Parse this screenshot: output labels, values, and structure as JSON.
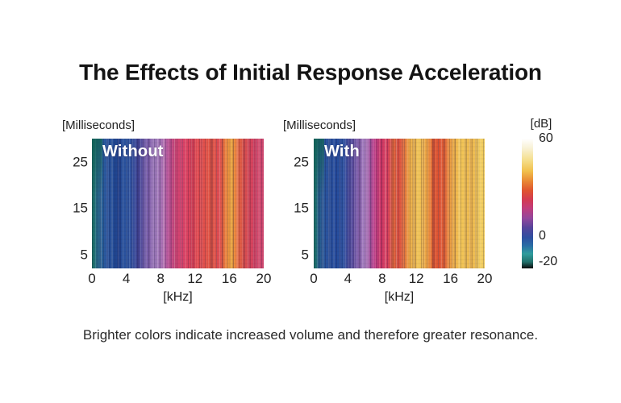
{
  "title": "The Effects of Initial Response Acceleration",
  "caption": "Brighter colors indicate increased volume and therefore greater resonance.",
  "chart_data": [
    {
      "type": "heatmap",
      "label": "Without",
      "xlabel": "[kHz]",
      "ylabel": "[Milliseconds]",
      "x_ticks": [
        0,
        4,
        8,
        12,
        16,
        20
      ],
      "y_ticks": [
        25,
        15,
        5
      ],
      "x_range": [
        0,
        20
      ],
      "y_range": [
        2,
        30
      ],
      "description": "Spectrogram without initial response acceleration: low frequencies blue (quiet), mids purple to magenta, highs mostly red with one bright yellow-orange resonance streak near 16 kHz.",
      "bands": [
        {
          "from_khz": 0.0,
          "to_khz": 0.3,
          "color": "#1c6e66",
          "approx_db": -12
        },
        {
          "from_khz": 0.3,
          "to_khz": 0.8,
          "color": "#27708c",
          "approx_db": -8
        },
        {
          "from_khz": 0.8,
          "to_khz": 2.4,
          "color": "#2b57a0",
          "approx_db": -2
        },
        {
          "from_khz": 2.4,
          "to_khz": 3.6,
          "color": "#1f4491",
          "approx_db": -4
        },
        {
          "from_khz": 3.6,
          "to_khz": 4.8,
          "color": "#2d57a3",
          "approx_db": -1
        },
        {
          "from_khz": 4.8,
          "to_khz": 5.8,
          "color": "#3f4899",
          "approx_db": 2
        },
        {
          "from_khz": 5.8,
          "to_khz": 6.5,
          "color": "#6b55a4",
          "approx_db": 6
        },
        {
          "from_khz": 6.5,
          "to_khz": 7.2,
          "color": "#8d6ab2",
          "approx_db": 9
        },
        {
          "from_khz": 7.2,
          "to_khz": 7.9,
          "color": "#a783c2",
          "approx_db": 12
        },
        {
          "from_khz": 7.9,
          "to_khz": 8.5,
          "color": "#a96fb3",
          "approx_db": 13
        },
        {
          "from_khz": 8.5,
          "to_khz": 9.3,
          "color": "#bb5598",
          "approx_db": 15
        },
        {
          "from_khz": 9.3,
          "to_khz": 10.0,
          "color": "#cc4778",
          "approx_db": 18
        },
        {
          "from_khz": 10.0,
          "to_khz": 10.9,
          "color": "#d8406a",
          "approx_db": 20
        },
        {
          "from_khz": 10.9,
          "to_khz": 12.4,
          "color": "#dd4458",
          "approx_db": 23
        },
        {
          "from_khz": 12.4,
          "to_khz": 13.5,
          "color": "#e14e4b",
          "approx_db": 26
        },
        {
          "from_khz": 13.5,
          "to_khz": 14.4,
          "color": "#e05844",
          "approx_db": 28
        },
        {
          "from_khz": 14.4,
          "to_khz": 15.2,
          "color": "#dd4751",
          "approx_db": 24
        },
        {
          "from_khz": 15.2,
          "to_khz": 15.8,
          "color": "#e87a3c",
          "approx_db": 33
        },
        {
          "from_khz": 15.8,
          "to_khz": 16.7,
          "color": "#f2ae41",
          "approx_db": 41
        },
        {
          "from_khz": 16.7,
          "to_khz": 17.3,
          "color": "#e4663f",
          "approx_db": 30
        },
        {
          "from_khz": 17.3,
          "to_khz": 18.2,
          "color": "#d94f4e",
          "approx_db": 25
        },
        {
          "from_khz": 18.2,
          "to_khz": 19.2,
          "color": "#d6425f",
          "approx_db": 22
        },
        {
          "from_khz": 19.2,
          "to_khz": 20.0,
          "color": "#d0486f",
          "approx_db": 20
        }
      ]
    },
    {
      "type": "heatmap",
      "label": "With",
      "xlabel": "[kHz]",
      "ylabel": "[Milliseconds]",
      "x_ticks": [
        0,
        4,
        8,
        12,
        16,
        20
      ],
      "y_ticks": [
        25,
        15,
        5
      ],
      "x_range": [
        0,
        20
      ],
      "y_range": [
        2,
        30
      ],
      "description": "Spectrogram with initial response acceleration: low frequencies blue, mids magenta to red, upper mids and highs much brighter with broad yellow bands around 11-13 kHz and 16-20 kHz indicating greater resonance.",
      "bands": [
        {
          "from_khz": 0.0,
          "to_khz": 0.3,
          "color": "#1c6e66",
          "approx_db": -12
        },
        {
          "from_khz": 0.3,
          "to_khz": 0.8,
          "color": "#27638f",
          "approx_db": -6
        },
        {
          "from_khz": 0.8,
          "to_khz": 2.0,
          "color": "#2b549e",
          "approx_db": -2
        },
        {
          "from_khz": 2.0,
          "to_khz": 3.0,
          "color": "#24499a",
          "approx_db": -4
        },
        {
          "from_khz": 3.0,
          "to_khz": 3.7,
          "color": "#2d57a6",
          "approx_db": 0
        },
        {
          "from_khz": 3.7,
          "to_khz": 4.3,
          "color": "#41479a",
          "approx_db": 3
        },
        {
          "from_khz": 4.3,
          "to_khz": 4.9,
          "color": "#5e4fa0",
          "approx_db": 6
        },
        {
          "from_khz": 4.9,
          "to_khz": 5.6,
          "color": "#8a65b0",
          "approx_db": 10
        },
        {
          "from_khz": 5.6,
          "to_khz": 6.2,
          "color": "#a77fc2",
          "approx_db": 13
        },
        {
          "from_khz": 6.2,
          "to_khz": 6.8,
          "color": "#a55ea7",
          "approx_db": 14
        },
        {
          "from_khz": 6.8,
          "to_khz": 7.5,
          "color": "#c2418a",
          "approx_db": 17
        },
        {
          "from_khz": 7.5,
          "to_khz": 8.3,
          "color": "#d23a66",
          "approx_db": 20
        },
        {
          "from_khz": 8.3,
          "to_khz": 9.0,
          "color": "#d63e5e",
          "approx_db": 22
        },
        {
          "from_khz": 9.0,
          "to_khz": 9.6,
          "color": "#e06a3c",
          "approx_db": 30
        },
        {
          "from_khz": 9.6,
          "to_khz": 10.3,
          "color": "#df4f43",
          "approx_db": 26
        },
        {
          "from_khz": 10.3,
          "to_khz": 11.0,
          "color": "#e4763a",
          "approx_db": 32
        },
        {
          "from_khz": 11.0,
          "to_khz": 11.6,
          "color": "#edb04a",
          "approx_db": 40
        },
        {
          "from_khz": 11.6,
          "to_khz": 13.0,
          "color": "#f0c455",
          "approx_db": 45
        },
        {
          "from_khz": 13.0,
          "to_khz": 13.6,
          "color": "#eda043",
          "approx_db": 38
        },
        {
          "from_khz": 13.6,
          "to_khz": 14.4,
          "color": "#e05b33",
          "approx_db": 30
        },
        {
          "from_khz": 14.4,
          "to_khz": 15.0,
          "color": "#dc4f31",
          "approx_db": 29
        },
        {
          "from_khz": 15.0,
          "to_khz": 15.8,
          "color": "#e2683a",
          "approx_db": 33
        },
        {
          "from_khz": 15.8,
          "to_khz": 16.4,
          "color": "#eea845",
          "approx_db": 40
        },
        {
          "from_khz": 16.4,
          "to_khz": 18.0,
          "color": "#f2c657",
          "approx_db": 46
        },
        {
          "from_khz": 18.0,
          "to_khz": 19.0,
          "color": "#eeb84e",
          "approx_db": 44
        },
        {
          "from_khz": 19.0,
          "to_khz": 20.0,
          "color": "#f2cd5f",
          "approx_db": 47
        }
      ]
    },
    {
      "type": "colorbar",
      "title": "[dB]",
      "ticks": [
        60,
        0,
        -20
      ],
      "range": [
        -20,
        60
      ],
      "stops": [
        {
          "value": 60,
          "color": "#ffffff"
        },
        {
          "value": 54,
          "color": "#f8f1d4"
        },
        {
          "value": 47,
          "color": "#f5df8e"
        },
        {
          "value": 40,
          "color": "#f1c04c"
        },
        {
          "value": 34,
          "color": "#e98a34"
        },
        {
          "value": 28,
          "color": "#df5430"
        },
        {
          "value": 22,
          "color": "#d23a55"
        },
        {
          "value": 17,
          "color": "#c03d7d"
        },
        {
          "value": 11,
          "color": "#93479c"
        },
        {
          "value": 5,
          "color": "#55449b"
        },
        {
          "value": -1,
          "color": "#2e4fa0"
        },
        {
          "value": -6,
          "color": "#2a6da5"
        },
        {
          "value": -11,
          "color": "#2f9d9d"
        },
        {
          "value": -16,
          "color": "#22706b"
        },
        {
          "value": -20,
          "color": "#0c0c0c"
        }
      ]
    }
  ]
}
